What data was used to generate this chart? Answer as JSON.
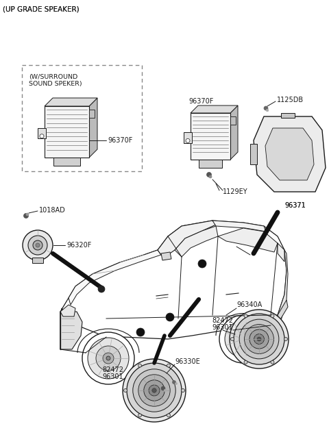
{
  "title": "(UP GRADE SPEAKER)",
  "background_color": "#ffffff",
  "line_color": "#1a1a1a",
  "label_fontsize": 7.0,
  "title_fontsize": 7.5,
  "figsize": [
    4.8,
    6.19
  ],
  "dpi": 100,
  "labels": {
    "surround_title": "(W/SURROUND\nSOUND SPEKER)",
    "surround_part": "96370F",
    "amp_label": "96370F",
    "bolt1": "1125DB",
    "bolt2": "1129EY",
    "tweeter": "96320F",
    "screw": "1018AD",
    "big_speaker": "96371",
    "door_spk": "96340A",
    "bracket1a": "82472",
    "bracket1b": "96301",
    "woofer": "96330E",
    "bracket2a": "82472",
    "bracket2b": "96301"
  }
}
